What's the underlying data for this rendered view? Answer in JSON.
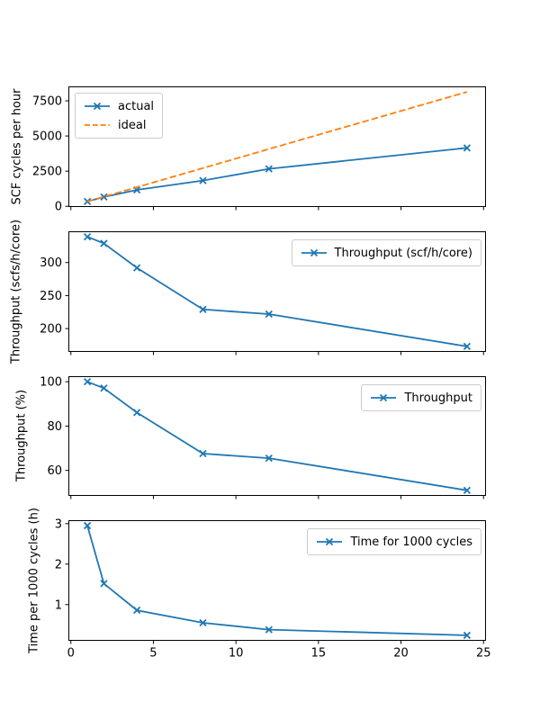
{
  "figure_background": "#ffffff",
  "colors": {
    "series_blue": "#1f77b4",
    "series_orange": "#ff7f0e",
    "axis": "#000000",
    "legend_border": "#cccccc",
    "text": "#000000"
  },
  "chart_data": [
    {
      "type": "line",
      "title": "",
      "xlabel": "",
      "ylabel": "SCF cycles per hour",
      "x": [
        1,
        2,
        4,
        8,
        12,
        24
      ],
      "series": [
        {
          "name": "actual",
          "values": [
            339,
            658,
            1168,
            1832,
            2664,
            4152
          ],
          "color": "#1f77b4",
          "style": "solid",
          "marker": "x"
        },
        {
          "name": "ideal",
          "values": [
            339,
            678,
            1356,
            2712,
            4068,
            8136
          ],
          "color": "#ff7f0e",
          "style": "dashed",
          "marker": "none"
        }
      ],
      "xlim": [
        -0.15,
        25.15
      ],
      "ylim": [
        -51,
        8526
      ],
      "xticks": [
        0,
        5,
        10,
        15,
        20,
        25
      ],
      "yticks": [
        0,
        2500,
        5000,
        7500
      ],
      "show_xtick_labels": false,
      "grid": false,
      "legend": {
        "position": "upper-left",
        "entries": [
          {
            "label": "actual"
          },
          {
            "label": "ideal"
          }
        ]
      }
    },
    {
      "type": "line",
      "title": "",
      "xlabel": "",
      "ylabel": "Throughput (scfs/h/core)",
      "x": [
        1,
        2,
        4,
        8,
        12,
        24
      ],
      "series": [
        {
          "name": "Throughput (scf/h/core)",
          "values": [
            339,
            329,
            292,
            229,
            222,
            173
          ],
          "color": "#1f77b4",
          "style": "solid",
          "marker": "x"
        }
      ],
      "xlim": [
        -0.15,
        25.15
      ],
      "ylim": [
        164.7,
        347.3
      ],
      "xticks": [
        0,
        5,
        10,
        15,
        20,
        25
      ],
      "yticks": [
        200,
        250,
        300
      ],
      "show_xtick_labels": false,
      "grid": false,
      "legend": {
        "position": "upper-right",
        "entries": [
          {
            "label": "Throughput (scf/h/core)"
          }
        ]
      }
    },
    {
      "type": "line",
      "title": "",
      "xlabel": "",
      "ylabel": "Throughput (%)",
      "x": [
        1,
        2,
        4,
        8,
        12,
        24
      ],
      "series": [
        {
          "name": "Throughput",
          "values": [
            100,
            97.1,
            86.1,
            67.6,
            65.5,
            51.0
          ],
          "color": "#1f77b4",
          "style": "solid",
          "marker": "x"
        }
      ],
      "xlim": [
        -0.15,
        25.15
      ],
      "ylim": [
        48.5,
        102.5
      ],
      "xticks": [
        0,
        5,
        10,
        15,
        20,
        25
      ],
      "yticks": [
        60,
        80,
        100
      ],
      "show_xtick_labels": false,
      "grid": false,
      "legend": {
        "position": "upper-right",
        "entries": [
          {
            "label": "Throughput"
          }
        ]
      }
    },
    {
      "type": "line",
      "title": "",
      "xlabel": "",
      "ylabel": "Time per 1000 cycles (h)",
      "x": [
        1,
        2,
        4,
        8,
        12,
        24
      ],
      "series": [
        {
          "name": "Time for 1000 cycles",
          "values": [
            2.95,
            1.52,
            0.86,
            0.55,
            0.38,
            0.24
          ],
          "color": "#1f77b4",
          "style": "solid",
          "marker": "x"
        }
      ],
      "xlim": [
        -0.15,
        25.15
      ],
      "ylim": [
        0.105,
        3.085
      ],
      "xticks": [
        0,
        5,
        10,
        15,
        20,
        25
      ],
      "xtick_labels": [
        "0",
        "5",
        "10",
        "15",
        "20",
        "25"
      ],
      "yticks": [
        1,
        2,
        3
      ],
      "show_xtick_labels": true,
      "grid": false,
      "legend": {
        "position": "upper-right",
        "entries": [
          {
            "label": "Time for 1000 cycles"
          }
        ]
      }
    }
  ]
}
